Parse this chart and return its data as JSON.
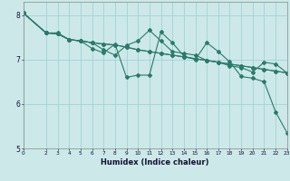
{
  "xlabel": "Humidex (Indice chaleur)",
  "bg_color": "#cce8e8",
  "grid_color": "#9ccfcf",
  "line_color": "#2a7a6a",
  "xlim": [
    0,
    23
  ],
  "ylim": [
    5,
    8.3
  ],
  "xticks": [
    0,
    2,
    3,
    4,
    5,
    6,
    7,
    8,
    9,
    10,
    11,
    12,
    13,
    14,
    15,
    16,
    17,
    18,
    19,
    20,
    21,
    22,
    23
  ],
  "yticks": [
    5,
    6,
    7,
    8
  ],
  "series1_x": [
    0,
    2,
    3,
    4,
    5,
    6,
    7,
    8,
    9,
    10,
    11,
    12,
    13,
    14,
    15,
    16,
    17,
    18,
    19,
    20,
    21,
    22,
    23
  ],
  "series1_y": [
    8.05,
    7.6,
    7.6,
    7.45,
    7.42,
    7.38,
    7.35,
    7.33,
    7.28,
    7.22,
    7.18,
    7.14,
    7.1,
    7.06,
    7.02,
    6.98,
    6.94,
    6.9,
    6.86,
    6.82,
    6.78,
    6.74,
    6.7
  ],
  "series2_x": [
    0,
    2,
    3,
    4,
    5,
    6,
    7,
    8,
    9,
    10,
    11,
    12,
    13,
    14,
    15,
    16,
    17,
    18,
    19,
    20,
    21,
    22,
    23
  ],
  "series2_y": [
    8.05,
    7.6,
    7.58,
    7.45,
    7.42,
    7.38,
    7.35,
    7.33,
    7.28,
    7.22,
    7.18,
    7.14,
    7.1,
    7.06,
    7.02,
    6.98,
    6.94,
    6.9,
    6.86,
    6.82,
    6.78,
    6.74,
    6.7
  ],
  "series3_x": [
    0,
    2,
    3,
    4,
    5,
    6,
    7,
    8,
    9,
    10,
    11,
    12,
    13,
    14,
    15,
    16,
    17,
    18,
    19,
    20,
    21,
    22,
    23
  ],
  "series3_y": [
    8.05,
    7.6,
    7.58,
    7.45,
    7.42,
    7.38,
    7.22,
    7.1,
    7.32,
    7.42,
    7.66,
    7.42,
    7.18,
    7.14,
    7.1,
    6.98,
    6.94,
    6.86,
    6.82,
    6.72,
    6.94,
    6.9,
    6.7
  ],
  "series4_x": [
    0,
    2,
    3,
    4,
    5,
    6,
    7,
    8,
    9,
    10,
    11,
    12,
    13,
    14,
    15,
    16,
    17,
    18,
    19,
    20,
    21,
    22,
    23
  ],
  "series4_y": [
    8.05,
    7.6,
    7.58,
    7.45,
    7.42,
    7.25,
    7.15,
    7.35,
    6.6,
    6.65,
    6.65,
    7.62,
    7.38,
    7.08,
    7.0,
    7.38,
    7.18,
    6.95,
    6.62,
    6.58,
    6.5,
    5.82,
    5.35
  ]
}
